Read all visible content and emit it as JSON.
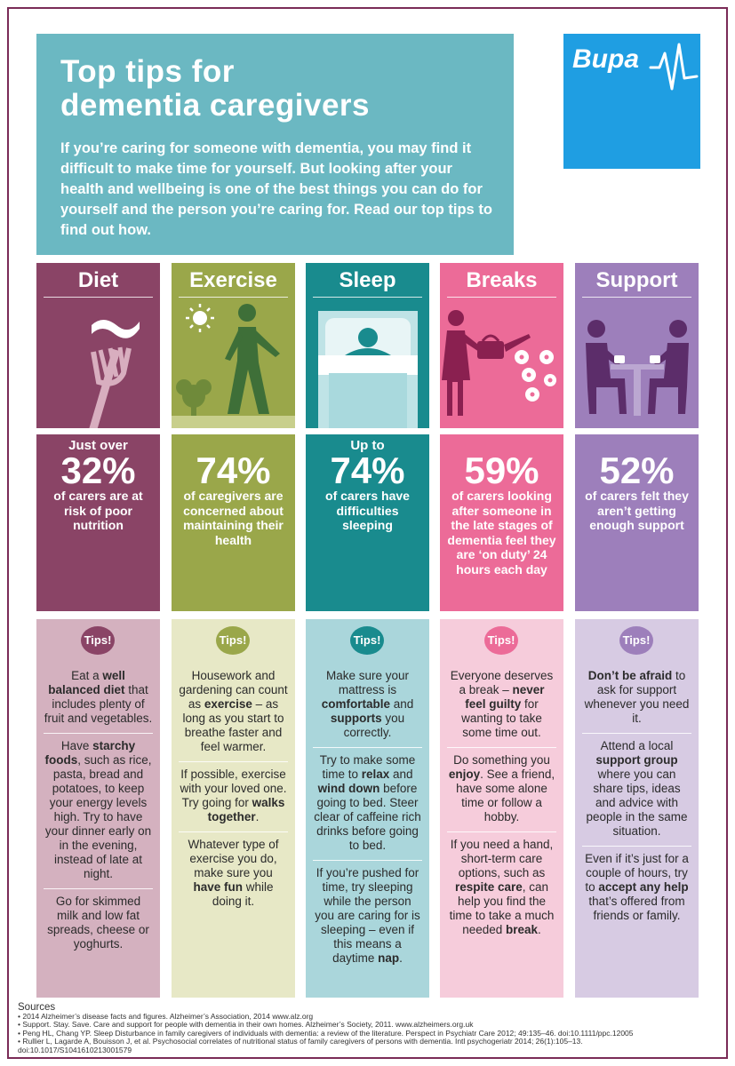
{
  "hero": {
    "title": "Top tips for\ndementia caregivers",
    "intro": "If you’re caring for someone with dementia, you may find it difficult to make time for yourself. But looking after your health and wellbeing is one of the best things you can do for yourself and the person you’re caring for. Read our top tips to find out how."
  },
  "logo": {
    "text": "Bupa"
  },
  "columns": [
    {
      "heading": "Diet",
      "stat_pre": "Just over",
      "stat_big": "32%",
      "stat_text": "of carers are at risk of poor nutrition",
      "badge": "Tips!",
      "tips": [
        [
          "Eat a ",
          "<b>well balanced diet</b>",
          " that includes plenty of fruit and vegetables."
        ],
        [
          "Have ",
          "<b>starchy foods</b>",
          ", such as rice, pasta, bread and potatoes, to keep your energy levels high. Try to have your dinner early on in the evening, instead of late at night."
        ],
        [
          "Go for skimmed milk and low fat spreads, cheese or yoghurts."
        ]
      ]
    },
    {
      "heading": "Exercise",
      "stat_pre": "",
      "stat_big": "74%",
      "stat_text": "of caregivers are concerned about maintaining their health",
      "badge": "Tips!",
      "tips": [
        [
          "Housework and gardening can count as ",
          "<b>exercise</b>",
          " – as long as you start to breathe faster and feel warmer."
        ],
        [
          "If possible, exercise with your loved one. Try going for ",
          "<b>walks together</b>",
          "."
        ],
        [
          "Whatever type of exercise you do, make sure you ",
          "<b>have fun</b>",
          " while doing it."
        ]
      ]
    },
    {
      "heading": "Sleep",
      "stat_pre": "Up to",
      "stat_big": "74%",
      "stat_text": "of carers have difficulties sleeping",
      "badge": "Tips!",
      "tips": [
        [
          "Make sure your mattress is ",
          "<b>comfortable</b>",
          " and ",
          "<b>supports</b>",
          " you correctly."
        ],
        [
          "Try to make some time to ",
          "<b>relax</b>",
          " and ",
          "<b>wind down</b>",
          " before going to bed. Steer clear of caffeine rich drinks before going to bed."
        ],
        [
          "If you’re pushed for time, try sleeping while the person you are caring for is sleeping – even if this means a daytime ",
          "<b>nap</b>",
          "."
        ]
      ]
    },
    {
      "heading": "Breaks",
      "stat_pre": "",
      "stat_big": "59%",
      "stat_text": "of carers looking after someone in the late stages of dementia feel they are ‘on duty’ 24 hours each day",
      "badge": "Tips!",
      "tips": [
        [
          "Everyone deserves a break – ",
          "<b>never feel guilty</b>",
          " for wanting to take some time out."
        ],
        [
          "Do something you ",
          "<b>enjoy</b>",
          ". See a friend, have some alone time or follow a hobby."
        ],
        [
          "If you need a hand, short-term care options, such as ",
          "<b>respite care</b>",
          ", can help you find the time to take a much needed ",
          "<b>break</b>",
          "."
        ]
      ]
    },
    {
      "heading": "Support",
      "stat_pre": "",
      "stat_big": "52%",
      "stat_text": "of carers felt they aren’t getting enough support",
      "badge": "Tips!",
      "tips": [
        [
          "<b>Don’t be afraid</b>",
          " to ask for support whenever you need it."
        ],
        [
          "Attend a local ",
          "<b>support group</b>",
          " where you can share tips, ideas and advice with people in the same situation."
        ],
        [
          "Even if it’s just for a couple of hours, try to ",
          "<b>accept any help</b>",
          " that’s offered from friends or family."
        ]
      ]
    }
  ],
  "sources": {
    "heading": "Sources",
    "items": [
      "• 2014 Alzheimer’s disease facts and figures. Alzheimer’s Association, 2014 www.alz.org",
      "• Support. Stay. Save. Care and support for people with dementia in their own homes. Alzheimer’s Society, 2011. www.alzheimers.org.uk",
      "• Peng HL, Chang YP. Sleep Disturbance in family caregivers of individuals with dementia: a review of the literature. Perspect in Psychiatr Care 2012; 49:135–46. doi:10.1111/ppc.12005",
      "• Rullier L, Lagarde A, Bouisson J, et al. Psychosocial correlates of nutritional status of family caregivers of persons with dementia. Intl psychogeriatr 2014; 26(1):105–13.",
      "   doi:10.1017/S1041610213001579"
    ]
  },
  "colors": {
    "diet_top": "#8a4466",
    "diet_stat": "#8a4466",
    "diet_tips": "#d4b1bf",
    "diet_badge": "#8a4466",
    "exercise_top": "#9aa74a",
    "exercise_stat": "#9aa74a",
    "exercise_tips": "#e7e8c6",
    "exercise_badge": "#9aa74a",
    "sleep_top": "#198b8e",
    "sleep_stat": "#198b8e",
    "sleep_tips": "#aad6db",
    "sleep_badge": "#198b8e",
    "breaks_top": "#ec6b98",
    "breaks_stat": "#ec6b98",
    "breaks_tips": "#f6ccdb",
    "breaks_badge": "#ec6b98",
    "support_top": "#9d7fbb",
    "support_stat": "#9d7fbb",
    "support_tips": "#d7cbe3",
    "support_badge": "#9d7fbb"
  },
  "icons": [
    "fork-icon",
    "sun-walker-icon",
    "bed-sleeper-icon",
    "watering-can-icon",
    "two-people-coffee-icon"
  ]
}
